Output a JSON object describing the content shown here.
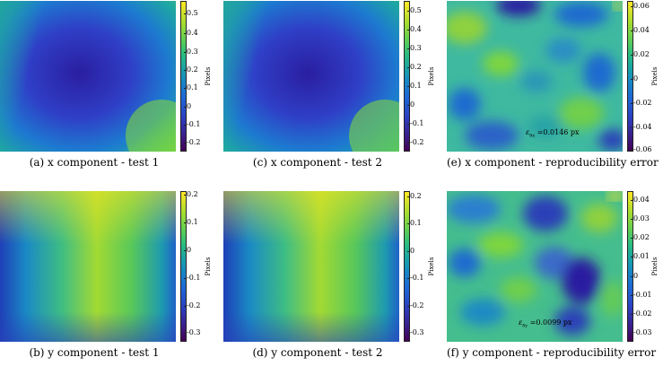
{
  "colorbar_unit": "Pixels",
  "colors": {
    "low": "#2a22a6",
    "mid": "#2b9da8",
    "high": "#fde725"
  },
  "panels": [
    {
      "id": "a",
      "caption": "(a) x component - test 1",
      "ticks": [
        "0.5",
        "0.4",
        "0.3",
        "0.2",
        "0.1",
        "0",
        "-0.1",
        "-0.2"
      ],
      "annotation": null
    },
    {
      "id": "c",
      "caption": "(c) x component - test 2",
      "ticks": [
        "0.5",
        "0.4",
        "0.3",
        "0.2",
        "0.1",
        "0",
        "-0.1",
        "-0.2"
      ],
      "annotation": null
    },
    {
      "id": "e",
      "caption": "(e) x component - reproducibility error",
      "ticks": [
        "0.06",
        "0.04",
        "0.02",
        "0",
        "-0.02",
        "-0.04",
        "-0.06"
      ],
      "annotation": {
        "symbol": "ε",
        "subscript": "δx",
        "value": "=0.0146 px"
      }
    },
    {
      "id": "b",
      "caption": "(b) y component - test 1",
      "ticks": [
        "0.2",
        "0.1",
        "0",
        "-0.1",
        "-0.2",
        "-0.3"
      ],
      "annotation": null
    },
    {
      "id": "d",
      "caption": "(d) y component - test 2",
      "ticks": [
        "0.2",
        "0.1",
        "0",
        "-0.1",
        "-0.2",
        "-0.3"
      ],
      "annotation": null
    },
    {
      "id": "f",
      "caption": "(f) y component - reproducibility error",
      "ticks": [
        "0.04",
        "0.03",
        "0.02",
        "0.01",
        "0",
        "-0.01",
        "-0.02",
        "-0.03"
      ],
      "annotation": {
        "symbol": "ε",
        "subscript": "δy",
        "value": "=0.0099 px"
      }
    }
  ]
}
